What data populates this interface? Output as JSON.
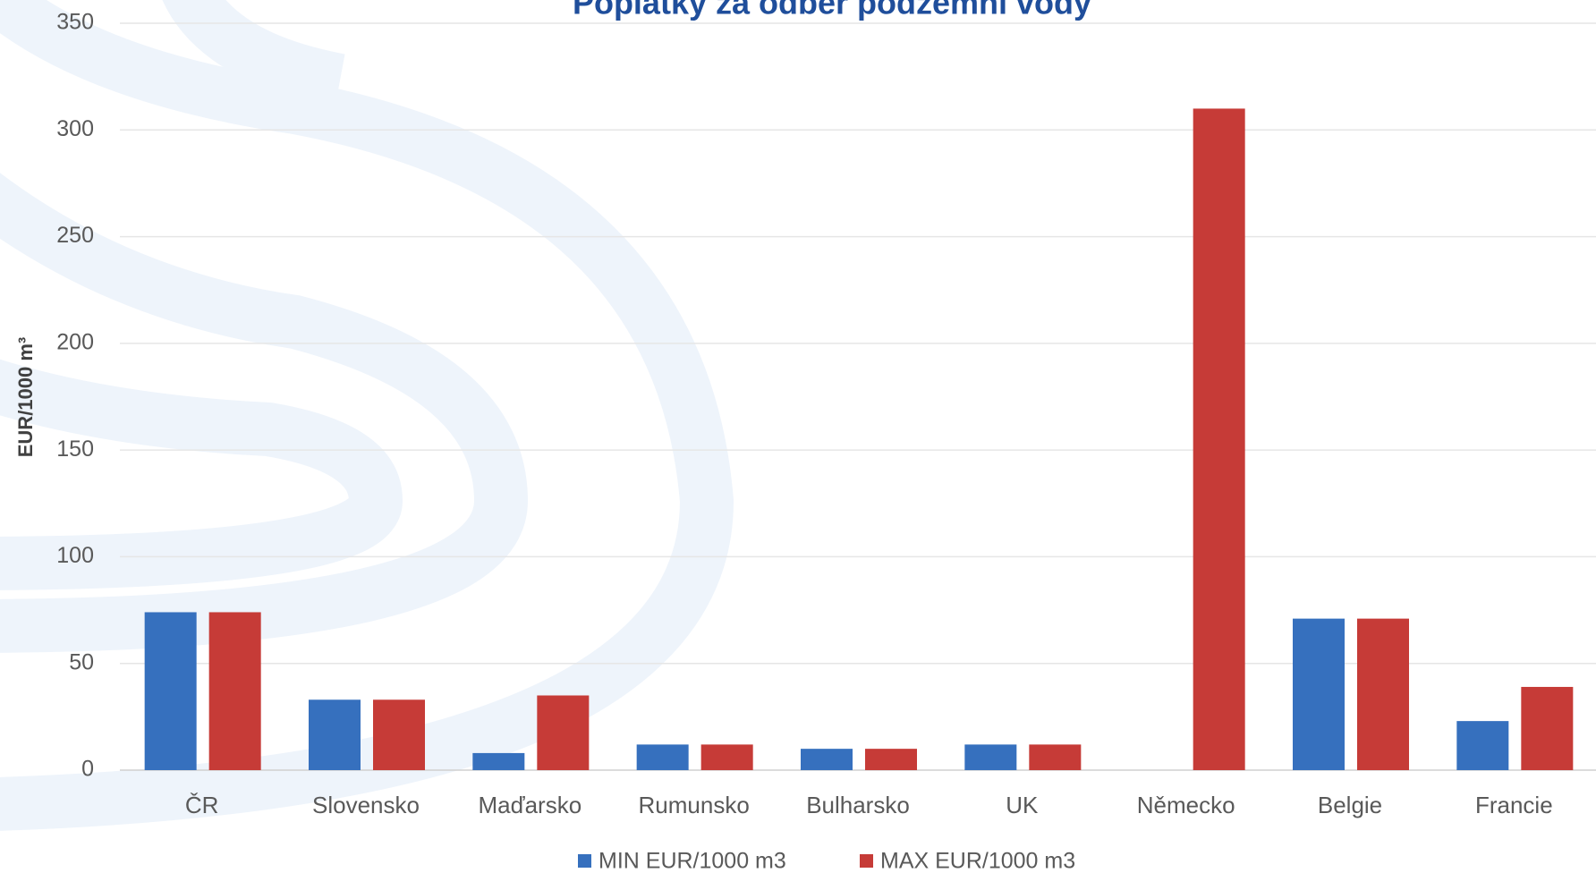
{
  "chart_data": {
    "type": "bar",
    "title": "Poplatky za odběr podzemní vody",
    "y_label": "EUR/1000 m³",
    "categories": [
      "ČR",
      "Slovensko",
      "Maďarsko",
      "Rumunsko",
      "Bulharsko",
      "UK",
      "Německo",
      "Belgie",
      "Francie"
    ],
    "series": [
      {
        "name": "MIN EUR/1000 m3",
        "color": "#3670be",
        "values": [
          74,
          33,
          8,
          12,
          10,
          12,
          null,
          71,
          23
        ]
      },
      {
        "name": "MAX EUR/1000 m3",
        "color": "#c63b37",
        "values": [
          74,
          33,
          35,
          12,
          10,
          12,
          310,
          71,
          39
        ]
      }
    ],
    "ylim": [
      0,
      350
    ],
    "yticks": [
      0,
      50,
      100,
      150,
      200,
      250,
      300,
      350
    ],
    "grid": true,
    "legend": "bottom"
  }
}
